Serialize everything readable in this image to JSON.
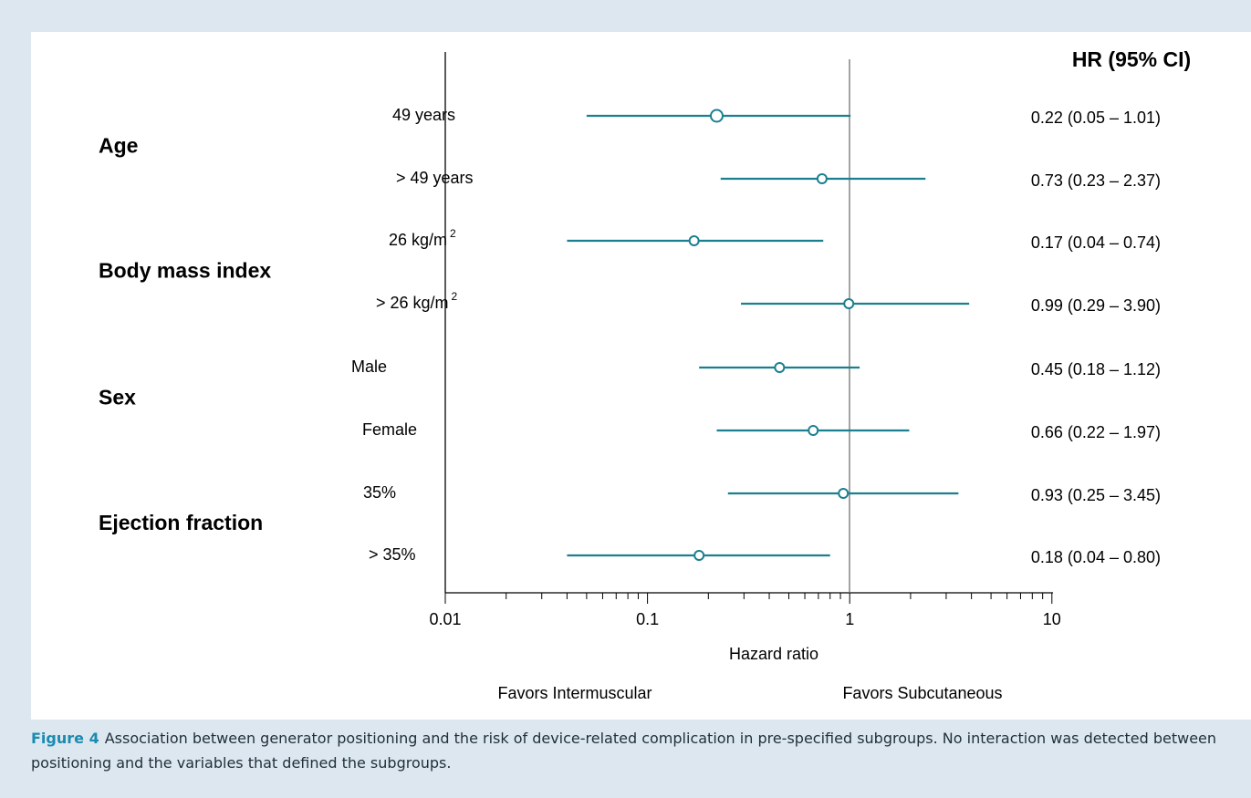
{
  "chart_data": {
    "type": "forest",
    "x_scale": "log",
    "xlim": [
      0.01,
      10
    ],
    "xticks": [
      "0.01",
      "0.1",
      "1",
      "10"
    ],
    "xlabel": "Hazard ratio",
    "reference_line": 1,
    "favor_left": "Favors Intermuscular",
    "favor_right": "Favors Subcutaneous",
    "ci_header": "HR (95% CI)",
    "marker_color": "#1b7f8f",
    "groups": [
      {
        "name": "Age",
        "rows": [
          {
            "label": "49 years",
            "hr": 0.22,
            "lo": 0.05,
            "hi": 1.01,
            "text": "0.22 (0.05 – 1.01)"
          },
          {
            "label": "> 49 years",
            "hr": 0.73,
            "lo": 0.23,
            "hi": 2.37,
            "text": "0.73 (0.23 – 2.37)"
          }
        ]
      },
      {
        "name": "Body mass index",
        "rows": [
          {
            "label": "26 kg/m",
            "sup": "2",
            "hr": 0.17,
            "lo": 0.04,
            "hi": 0.74,
            "text": "0.17 (0.04 – 0.74)"
          },
          {
            "label": "> 26 kg/m",
            "sup": "2",
            "hr": 0.99,
            "lo": 0.29,
            "hi": 3.9,
            "text": "0.99 (0.29 – 3.90)"
          }
        ]
      },
      {
        "name": "Sex",
        "rows": [
          {
            "label": "Male",
            "hr": 0.45,
            "lo": 0.18,
            "hi": 1.12,
            "text": "0.45 (0.18 – 1.12)"
          },
          {
            "label": "Female",
            "hr": 0.66,
            "lo": 0.22,
            "hi": 1.97,
            "text": "0.66 (0.22 – 1.97)"
          }
        ]
      },
      {
        "name": "Ejection fraction",
        "rows": [
          {
            "label": "35%",
            "hr": 0.93,
            "lo": 0.25,
            "hi": 3.45,
            "text": "0.93 (0.25 – 3.45)"
          },
          {
            "label": "> 35%",
            "hr": 0.18,
            "lo": 0.04,
            "hi": 0.8,
            "text": "0.18 (0.04 – 0.80)"
          }
        ]
      }
    ]
  },
  "caption": {
    "label": "Figure 4",
    "text": "Association between generator positioning and the risk of device-related complication in pre-specified subgroups. No interaction was detected between positioning and the variables that defined the subgroups."
  }
}
